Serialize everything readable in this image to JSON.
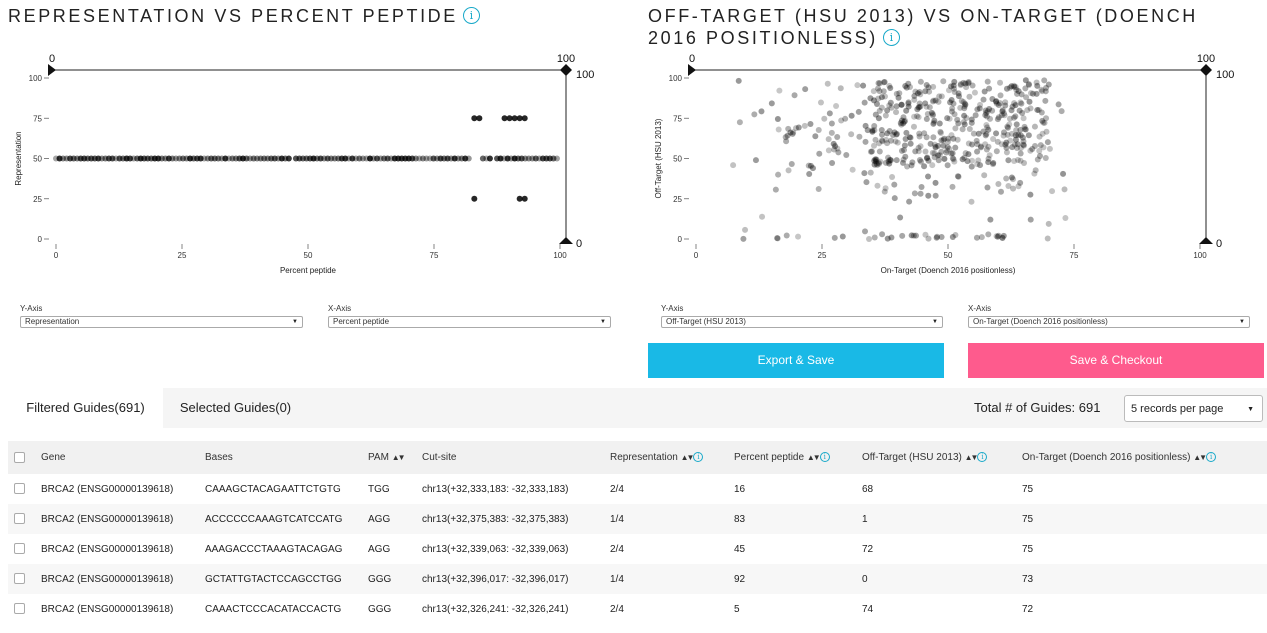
{
  "chart_data": [
    {
      "type": "scatter",
      "title": "REPRESENTATION VS PERCENT PEPTIDE",
      "xlabel": "Percent peptide",
      "ylabel": "Representation",
      "xlim": [
        0,
        100
      ],
      "ylim": [
        0,
        100
      ],
      "xticks": [
        "0",
        "25",
        "50",
        "75",
        "100"
      ],
      "yticks": [
        "0",
        "25",
        "50",
        "75",
        "100"
      ],
      "slider_x": {
        "min_label": "0",
        "max_label": "100"
      },
      "slider_y": {
        "min_label": "0",
        "max_label": "100"
      },
      "points_y50_x_range": [
        0,
        100
      ],
      "points": [
        [
          83,
          75
        ],
        [
          84,
          75
        ],
        [
          89,
          75
        ],
        [
          90,
          75
        ],
        [
          91,
          75
        ],
        [
          92,
          75
        ],
        [
          93,
          75
        ],
        [
          83,
          25
        ],
        [
          92,
          25
        ],
        [
          93,
          25
        ]
      ]
    },
    {
      "type": "scatter",
      "title": "OFF-TARGET (HSU 2013) VS ON-TARGET (DOENCH 2016 POSITIONLESS)",
      "xlabel": "On-Target (Doench 2016 positionless)",
      "ylabel": "Off-Target (HSU 2013)",
      "xlim": [
        0,
        100
      ],
      "ylim": [
        0,
        100
      ],
      "xticks": [
        "0",
        "25",
        "50",
        "75",
        "100"
      ],
      "yticks": [
        "0",
        "25",
        "50",
        "75",
        "100"
      ],
      "slider_x": {
        "min_label": "0",
        "max_label": "100"
      },
      "slider_y": {
        "min_label": "0",
        "max_label": "100"
      }
    }
  ],
  "left_controls": {
    "yaxis_label": "Y-Axis",
    "yaxis_value": "Representation",
    "xaxis_label": "X-Axis",
    "xaxis_value": "Percent peptide"
  },
  "right_controls": {
    "yaxis_label": "Y-Axis",
    "yaxis_value": "Off-Target (HSU 2013)",
    "xaxis_label": "X-Axis",
    "xaxis_value": "On-Target (Doench 2016 positionless)"
  },
  "buttons": {
    "export": "Export & Save",
    "checkout": "Save & Checkout",
    "export_color": "#19b9e6",
    "checkout_color": "#fe5b8d"
  },
  "tabs": [
    {
      "label": "Filtered Guides(691)"
    },
    {
      "label": "Selected Guides(0)"
    }
  ],
  "total_label": "Total # of Guides: 691",
  "records_select": "5 records per page",
  "table": {
    "headers": {
      "gene": "Gene",
      "bases": "Bases",
      "pam": "PAM",
      "cut": "Cut-site",
      "rep": "Representation",
      "pep": "Percent peptide",
      "off": "Off-Target (HSU 2013)",
      "on": "On-Target (Doench 2016 positionless)"
    },
    "rows": [
      {
        "gene": "BRCA2 (ENSG00000139618)",
        "bases": "CAAAGCTACAGAATTCTGTG",
        "pam": "TGG",
        "cut": "chr13(+32,333,183: -32,333,183)",
        "rep": "2/4",
        "pep": "16",
        "off": "68",
        "on": "75"
      },
      {
        "gene": "BRCA2 (ENSG00000139618)",
        "bases": "ACCCCCCAAAGTCATCCATG",
        "pam": "AGG",
        "cut": "chr13(+32,375,383: -32,375,383)",
        "rep": "1/4",
        "pep": "83",
        "off": "1",
        "on": "75"
      },
      {
        "gene": "BRCA2 (ENSG00000139618)",
        "bases": "AAAGACCCTAAAGTACAGAG",
        "pam": "AGG",
        "cut": "chr13(+32,339,063: -32,339,063)",
        "rep": "2/4",
        "pep": "45",
        "off": "72",
        "on": "75"
      },
      {
        "gene": "BRCA2 (ENSG00000139618)",
        "bases": "GCTATTGTACTCCAGCCTGG",
        "pam": "GGG",
        "cut": "chr13(+32,396,017: -32,396,017)",
        "rep": "1/4",
        "pep": "92",
        "off": "0",
        "on": "73"
      },
      {
        "gene": "BRCA2 (ENSG00000139618)",
        "bases": "CAAACTCCCACATACCACTG",
        "pam": "GGG",
        "cut": "chr13(+32,326,241: -32,326,241)",
        "rep": "2/4",
        "pep": "5",
        "off": "74",
        "on": "72"
      }
    ]
  }
}
